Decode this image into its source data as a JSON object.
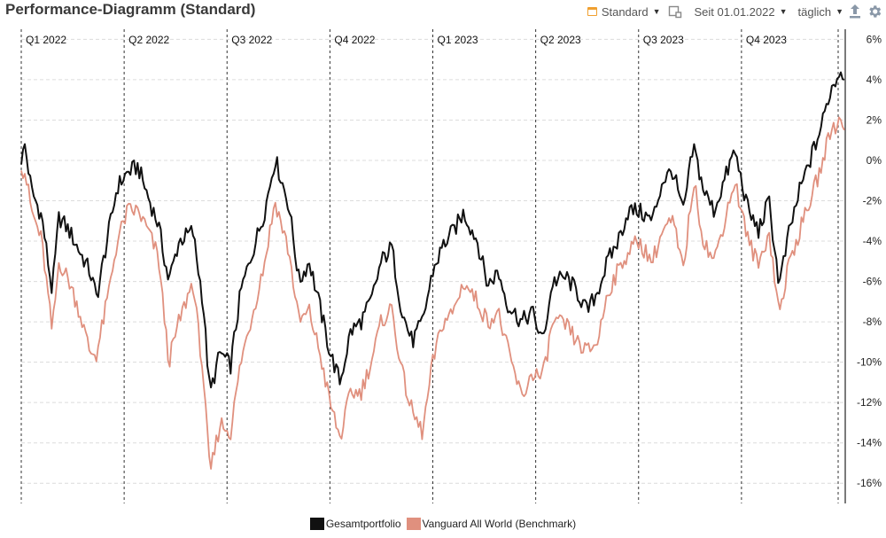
{
  "header": {
    "title": "Performance-Diagramm (Standard)",
    "preset_label": "Standard",
    "period_label": "Seit 01.01.2022",
    "interval_label": "täglich"
  },
  "colors": {
    "portfolio": "#111111",
    "benchmark": "#e0907e"
  },
  "chart_data": {
    "type": "line",
    "x_range": [
      "2022-01-01",
      "2023-12-31"
    ],
    "ylim": [
      -17,
      6.5
    ],
    "y_ticks": [
      6,
      4,
      2,
      0,
      -2,
      -4,
      -6,
      -8,
      -10,
      -12,
      -14,
      -16
    ],
    "y_tick_labels": [
      "6%",
      "4%",
      "2%",
      "0%",
      "-2%",
      "-4%",
      "-6%",
      "-8%",
      "-10%",
      "-12%",
      "-14%",
      "-16%"
    ],
    "quarter_labels": [
      "Q1 2022",
      "Q2 2022",
      "Q3 2022",
      "Q4 2022",
      "Q1 2023",
      "Q2 2023",
      "Q3 2023",
      "Q4 2023"
    ],
    "grid": true,
    "legend_position": "bottom-center",
    "series": [
      {
        "name": "Gesamtportfolio",
        "x_months": [
          0,
          0.1,
          0.3,
          0.6,
          0.9,
          1.1,
          1.4,
          1.7,
          2.0,
          2.2,
          2.5,
          2.8,
          3.1,
          3.4,
          3.7,
          4.0,
          4.3,
          4.6,
          5.0,
          5.3,
          5.5,
          5.8,
          6.1,
          6.4,
          6.8,
          7.1,
          7.4,
          7.8,
          8.1,
          8.4,
          8.7,
          9.0,
          9.3,
          9.6,
          9.9,
          10.2,
          10.5,
          10.8,
          11.1,
          11.4,
          11.7,
          12.0,
          12.3,
          12.6,
          12.9,
          13.3,
          13.6,
          13.9,
          14.2,
          14.6,
          14.9,
          15.2,
          15.5,
          15.9,
          16.2,
          16.5,
          16.8,
          17.1,
          17.4,
          17.7,
          18.0,
          18.4,
          18.7,
          19.0,
          19.3,
          19.6,
          19.9,
          20.2,
          20.5,
          20.8,
          21.2,
          21.5,
          21.8,
          22.1,
          22.4,
          22.7,
          23.0,
          23.3,
          23.6,
          23.9,
          24.0
        ],
        "values": [
          -0.2,
          0.8,
          -1.5,
          -2.8,
          -6.5,
          -2.8,
          -3.5,
          -4.5,
          -5.5,
          -6.8,
          -4.0,
          -1.3,
          -0.6,
          -0.3,
          -1.8,
          -3.2,
          -6.0,
          -4.0,
          -3.5,
          -7.0,
          -11.6,
          -9.5,
          -10.2,
          -6.5,
          -4.2,
          -2.5,
          0.1,
          -2.2,
          -6.0,
          -5.0,
          -7.2,
          -9.5,
          -11.0,
          -8.5,
          -8.0,
          -7.0,
          -5.0,
          -4.3,
          -7.5,
          -9.0,
          -8.0,
          -5.5,
          -4.2,
          -3.5,
          -2.6,
          -4.0,
          -6.2,
          -5.5,
          -7.2,
          -8.0,
          -7.5,
          -9.0,
          -6.0,
          -5.8,
          -6.5,
          -7.5,
          -6.5,
          -5.0,
          -4.0,
          -2.5,
          -2.5,
          -3.0,
          -1.0,
          -0.5,
          -2.6,
          0.7,
          -1.5,
          -2.5,
          -1.0,
          0.5,
          -2.5,
          -3.5,
          -2.0,
          -6.2,
          -3.5,
          -1.5,
          0.0,
          1.5,
          3.5,
          4.5,
          4.0
        ]
      },
      {
        "name": "Vanguard All World (Benchmark)",
        "x_months": [
          0,
          0.1,
          0.3,
          0.6,
          0.9,
          1.1,
          1.4,
          1.7,
          2.0,
          2.2,
          2.5,
          2.8,
          3.1,
          3.4,
          3.7,
          4.0,
          4.3,
          4.6,
          5.0,
          5.3,
          5.5,
          5.8,
          6.1,
          6.4,
          6.8,
          7.1,
          7.4,
          7.8,
          8.1,
          8.4,
          8.7,
          9.0,
          9.3,
          9.6,
          9.9,
          10.2,
          10.5,
          10.8,
          11.1,
          11.4,
          11.7,
          12.0,
          12.3,
          12.6,
          12.9,
          13.3,
          13.6,
          13.9,
          14.2,
          14.6,
          14.9,
          15.2,
          15.5,
          15.9,
          16.2,
          16.5,
          16.8,
          17.1,
          17.4,
          17.7,
          18.0,
          18.4,
          18.7,
          19.0,
          19.3,
          19.6,
          19.9,
          20.2,
          20.5,
          20.8,
          21.2,
          21.5,
          21.8,
          22.1,
          22.4,
          22.7,
          23.0,
          23.3,
          23.6,
          23.9,
          24.0
        ],
        "values": [
          -0.5,
          -0.5,
          -2.5,
          -4.0,
          -8.5,
          -5.0,
          -6.0,
          -7.5,
          -9.5,
          -9.6,
          -7.0,
          -4.0,
          -2.5,
          -2.5,
          -3.5,
          -4.8,
          -10.0,
          -8.0,
          -6.0,
          -10.5,
          -15.6,
          -13.0,
          -13.5,
          -10.0,
          -7.2,
          -5.0,
          -2.0,
          -4.5,
          -8.0,
          -7.5,
          -9.5,
          -12.0,
          -13.8,
          -11.5,
          -11.5,
          -10.0,
          -8.0,
          -7.3,
          -10.5,
          -12.5,
          -13.5,
          -10.0,
          -8.0,
          -7.5,
          -6.0,
          -7.0,
          -8.0,
          -7.5,
          -9.5,
          -11.8,
          -10.5,
          -10.8,
          -8.0,
          -8.2,
          -9.0,
          -9.5,
          -9.0,
          -6.5,
          -5.5,
          -4.5,
          -4.0,
          -5.0,
          -3.5,
          -3.0,
          -5.5,
          -1.0,
          -4.0,
          -5.0,
          -3.0,
          -1.0,
          -4.0,
          -5.2,
          -3.5,
          -7.6,
          -5.0,
          -3.5,
          -2.0,
          -0.5,
          1.5,
          2.0,
          1.5
        ]
      }
    ]
  },
  "legend": {
    "portfolio_label": "Gesamtportfolio",
    "benchmark_label": "Vanguard All World (Benchmark)"
  }
}
